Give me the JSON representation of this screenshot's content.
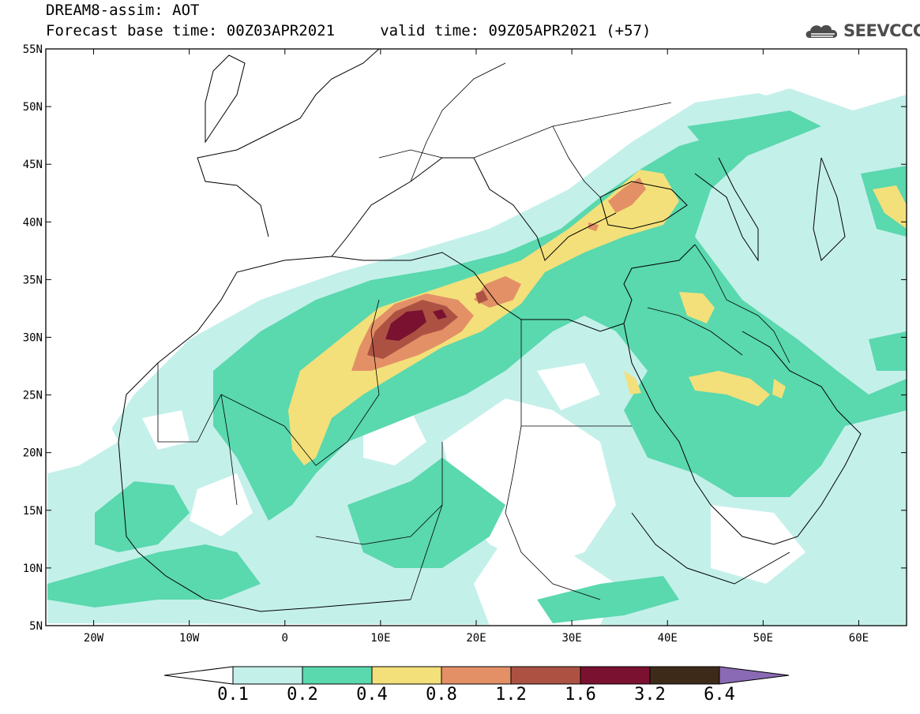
{
  "title": {
    "line1": "DREAM8-assim: AOT",
    "line2": "Forecast base time: 00Z03APR2021     valid time: 09Z05APR2021 (+57)"
  },
  "logo": {
    "text": "SEEVCCC",
    "icon": "cloud-logo-icon"
  },
  "map": {
    "lon_range": [
      -25,
      65
    ],
    "lat_range": [
      5,
      55
    ],
    "lat_labels": [
      "55N",
      "50N",
      "45N",
      "40N",
      "35N",
      "30N",
      "25N",
      "20N",
      "15N",
      "10N",
      "5N"
    ],
    "lon_labels": [
      "20W",
      "10W",
      "0",
      "10E",
      "20E",
      "30E",
      "40E",
      "50E",
      "60E"
    ]
  },
  "colorbar": {
    "levels": [
      "0.1",
      "0.2",
      "0.4",
      "0.8",
      "1.2",
      "1.6",
      "3.2",
      "6.4"
    ],
    "colors": [
      "#c4f0ea",
      "#5ad8ae",
      "#f3e07a",
      "#e39067",
      "#ad5243",
      "#7a1131",
      "#3e2a19",
      "#8a6ab4"
    ]
  }
}
